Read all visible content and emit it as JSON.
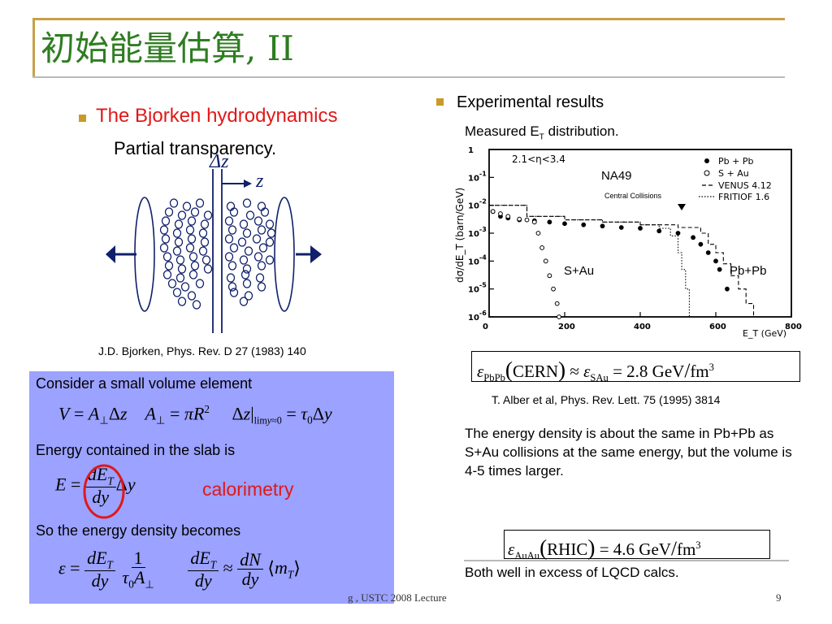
{
  "title": "初始能量估算, II",
  "left": {
    "bullet_heading": "The Bjorken hydrodynamics",
    "subheading": "Partial transparency.",
    "delta_z_label": "Δz",
    "z_label": "z",
    "citation": "J.D. Bjorken, Phys. Rev. D 27 (1983) 140"
  },
  "box": {
    "line1": "Consider a small volume element",
    "line2": "Energy contained in the slab is",
    "calorimetry": "calorimetry",
    "line3": "So the energy density becomes"
  },
  "right": {
    "bullet_heading": "Experimental results",
    "subheading_prefix": "Measured E",
    "subheading_sub": "T",
    "subheading_suffix": " distribution.",
    "citation": "T. Alber et al, Phys. Rev. Lett. 75 (1995) 3814",
    "para1": "The energy density is about the same in Pb+Pb as S+Au collisions at the same energy, but the volume is 4-5 times larger.",
    "para2": "Both well in excess of LQCD calcs.",
    "formula1_value": "2.8 GeV",
    "formula1_unit": "fm",
    "formula2_value": "4.6 GeV",
    "formula2_unit": "fm"
  },
  "chart": {
    "range_label": "2.1<η<3.4",
    "experiment_label": "NA49",
    "central_label": "Central Collisions",
    "sau_label": "S+Au",
    "pbpb_label": "Pb+Pb",
    "legend": [
      "Pb + Pb",
      "S + Au",
      "VENUS 4.12",
      "FRITIOF 1.6"
    ],
    "ylabel": "dσ/dE_T  (barn/GeV)",
    "xlabel": "E_T  (GeV)",
    "xticks": [
      "0",
      "200",
      "400",
      "600",
      "800"
    ],
    "yticks": [
      "1",
      "10",
      "10",
      "10",
      "10",
      "10",
      "10"
    ],
    "ytick_exps": [
      "",
      "-1",
      "-2",
      "-3",
      "-4",
      "-5",
      "-6"
    ]
  },
  "chart_data": {
    "type": "scatter",
    "title": "",
    "xlabel": "E_T (GeV)",
    "ylabel": "dσ/dE_T (barn/GeV)",
    "xlim": [
      0,
      800
    ],
    "ylim_log10": [
      -6,
      0
    ],
    "log_y": true,
    "series": [
      {
        "name": "Pb + Pb",
        "marker": "filled",
        "x": [
          10,
          30,
          50,
          80,
          120,
          160,
          200,
          250,
          300,
          350,
          400,
          450,
          500,
          540,
          560,
          580,
          600,
          610,
          630
        ],
        "y": [
          0.006,
          0.004,
          0.0035,
          0.003,
          0.0028,
          0.0025,
          0.0022,
          0.002,
          0.0018,
          0.0016,
          0.0015,
          0.0012,
          0.001,
          0.0007,
          0.0004,
          0.0002,
          0.0001,
          5e-05,
          1e-05
        ]
      },
      {
        "name": "S + Au",
        "marker": "open",
        "x": [
          10,
          30,
          50,
          80,
          100,
          120,
          130,
          140,
          150,
          160,
          170,
          180,
          185
        ],
        "y": [
          0.006,
          0.005,
          0.004,
          0.0032,
          0.003,
          0.0025,
          0.001,
          0.0003,
          0.0001,
          3e-05,
          1e-05,
          3e-06,
          1e-06
        ]
      },
      {
        "name": "VENUS 4.12",
        "style": "dashed",
        "x": [
          0,
          100,
          200,
          300,
          400,
          500,
          560,
          580,
          600,
          620,
          640,
          660,
          680,
          700
        ],
        "y": [
          0.01,
          0.004,
          0.003,
          0.0025,
          0.002,
          0.0016,
          0.001,
          0.0004,
          0.0002,
          8e-05,
          3e-05,
          1e-05,
          3e-06,
          1e-06
        ]
      },
      {
        "name": "FRITIOF 1.6",
        "style": "dotted",
        "x": [
          0,
          100,
          200,
          300,
          400,
          450,
          480,
          500,
          510,
          520,
          530
        ],
        "y": [
          0.01,
          0.004,
          0.003,
          0.0025,
          0.002,
          0.0015,
          0.0008,
          0.0002,
          5e-05,
          1e-05,
          1e-06
        ]
      }
    ]
  },
  "footer": {
    "left": "g , USTC 2008 Lecture",
    "page": "9"
  }
}
